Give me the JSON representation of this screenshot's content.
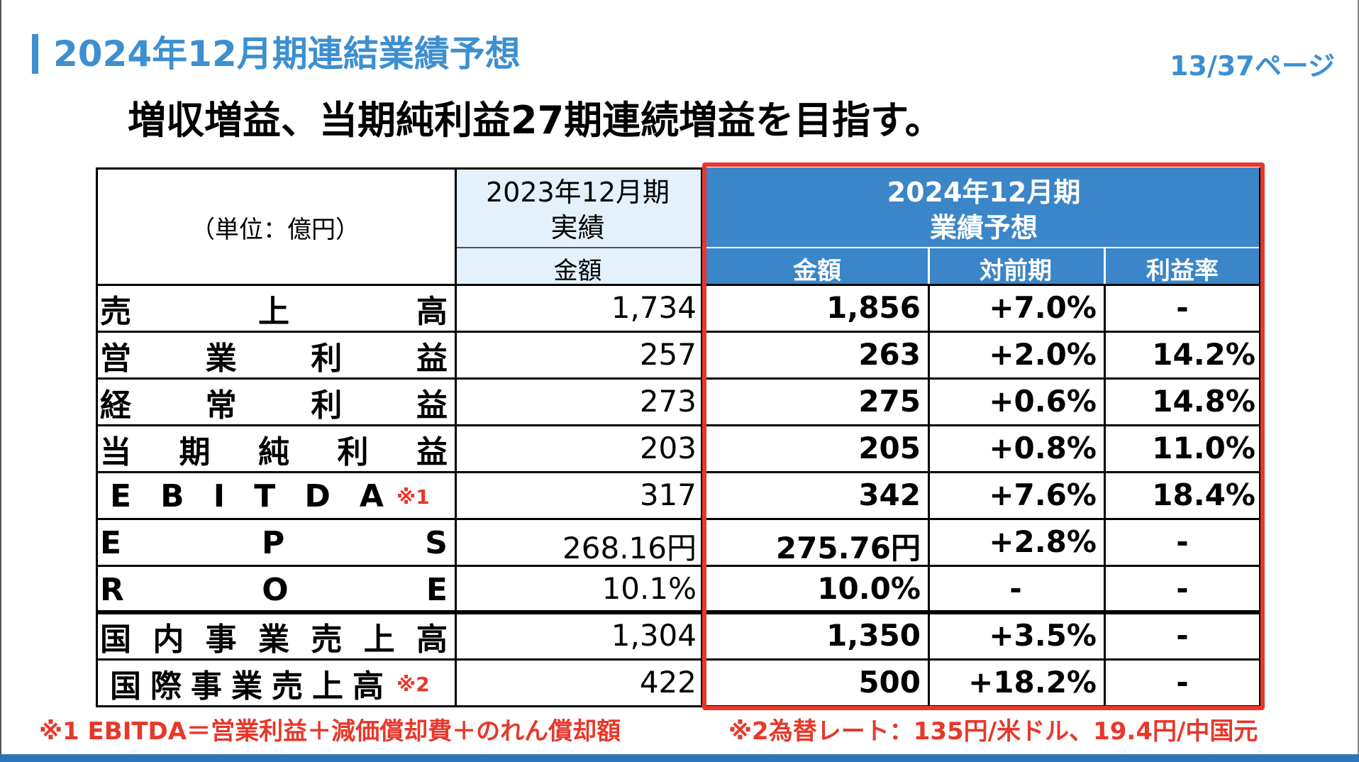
{
  "slide": {
    "title": "2024年12月期連結業績予想",
    "page_indicator": "13/37ページ",
    "headline": "増収増益、当期純利益27期連続増益を目指す。"
  },
  "table": {
    "unit_label": "（単位：億円）",
    "header_2023_line1": "2023年12月期",
    "header_2023_line2": "実績",
    "header_2024_line1": "2024年12月期",
    "header_2024_line2": "業績予想",
    "sub_amount_2023": "金額",
    "sub_amount_2024": "金額",
    "sub_yoy": "対前期",
    "sub_margin": "利益率",
    "rows": [
      {
        "label_chars": [
          "売",
          "上",
          "高"
        ],
        "note": "",
        "y2023": "1,734",
        "y2024": "1,856",
        "yoy": "+7.0%",
        "margin": "-"
      },
      {
        "label_chars": [
          "営",
          "業",
          "利",
          "益"
        ],
        "note": "",
        "y2023": "257",
        "y2024": "263",
        "yoy": "+2.0%",
        "margin": "14.2%"
      },
      {
        "label_chars": [
          "経",
          "常",
          "利",
          "益"
        ],
        "note": "",
        "y2023": "273",
        "y2024": "275",
        "yoy": "+0.6%",
        "margin": "14.8%"
      },
      {
        "label_chars": [
          "当",
          "期",
          "純",
          "利",
          "益"
        ],
        "note": "",
        "y2023": "203",
        "y2024": "205",
        "yoy": "+0.8%",
        "margin": "11.0%"
      },
      {
        "label_chars": [
          "E",
          "B",
          "I",
          "T",
          "D",
          "A"
        ],
        "note": "※1",
        "y2023": "317",
        "y2024": "342",
        "yoy": "+7.6%",
        "margin": "18.4%"
      },
      {
        "label_chars": [
          "E",
          "P",
          "S"
        ],
        "note": "",
        "y2023": "268.16円",
        "y2024": "275.76円",
        "yoy": "+2.8%",
        "margin": "-"
      },
      {
        "label_chars": [
          "R",
          "O",
          "E"
        ],
        "note": "",
        "y2023": "10.1%",
        "y2024": "10.0%",
        "yoy": "-",
        "margin": "-"
      },
      {
        "label_chars": [
          "国",
          "内",
          "事",
          "業",
          "売",
          "上",
          "高"
        ],
        "note": "",
        "y2023": "1,304",
        "y2024": "1,350",
        "yoy": "+3.5%",
        "margin": "-"
      },
      {
        "label_chars": [
          "国",
          "際",
          "事",
          "業",
          "売",
          "上",
          "高"
        ],
        "note": "※2",
        "y2023": "422",
        "y2024": "500",
        "yoy": "+18.2%",
        "margin": "-"
      }
    ]
  },
  "footnotes": {
    "note1": "※1 EBITDA＝営業利益＋減価償却費＋のれん償却額",
    "note2": "※2為替レート：135円/米ドル、19.4円/中国元"
  },
  "colors": {
    "accent_blue": "#3d8fd0",
    "header_blue": "#3b86c8",
    "light_blue": "#e4f1fa",
    "highlight_red": "#e8372b"
  }
}
